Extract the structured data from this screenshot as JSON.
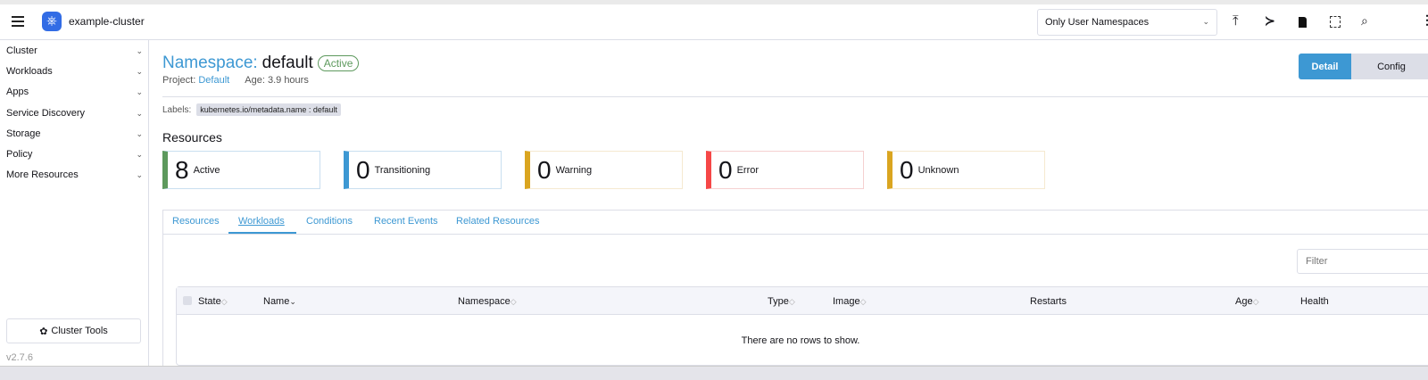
{
  "header": {
    "cluster_name": "example-cluster",
    "namespace_filter": "Only User Namespaces",
    "icons": [
      "upload-icon",
      "terminal-icon",
      "file-icon",
      "copy-icon",
      "search-icon",
      "more-icon"
    ]
  },
  "sidebar": {
    "items": [
      {
        "label": "Cluster"
      },
      {
        "label": "Workloads"
      },
      {
        "label": "Apps"
      },
      {
        "label": "Service Discovery"
      },
      {
        "label": "Storage"
      },
      {
        "label": "Policy"
      },
      {
        "label": "More Resources"
      }
    ],
    "cluster_tools": "Cluster Tools",
    "version": "v2.7.6"
  },
  "page": {
    "title_prefix": "Namespace:",
    "title_name": "default",
    "status": "Active",
    "project_label": "Project:",
    "project_value": "Default",
    "age": "Age: 3.9 hours",
    "labels_label": "Labels:",
    "label_tag": "kubernetes.io/metadata.name : default",
    "detail_button": "Detail",
    "config_button": "Config",
    "resources_heading": "Resources"
  },
  "resource_cards": [
    {
      "count": "8",
      "label": "Active",
      "color": "#5d995d"
    },
    {
      "count": "0",
      "label": "Transitioning",
      "color": "#3d98d3"
    },
    {
      "count": "0",
      "label": "Warning",
      "color": "#daa520"
    },
    {
      "count": "0",
      "label": "Error",
      "color": "#f64747"
    },
    {
      "count": "0",
      "label": "Unknown",
      "color": "#daa520"
    }
  ],
  "tabs": [
    {
      "label": "Resources"
    },
    {
      "label": "Workloads",
      "active": true
    },
    {
      "label": "Conditions"
    },
    {
      "label": "Recent Events"
    },
    {
      "label": "Related Resources"
    }
  ],
  "table": {
    "filter_placeholder": "Filter",
    "columns": [
      "State",
      "Name",
      "Namespace",
      "Type",
      "Image",
      "Restarts",
      "Age",
      "Health"
    ],
    "empty_message": "There are no rows to show."
  }
}
